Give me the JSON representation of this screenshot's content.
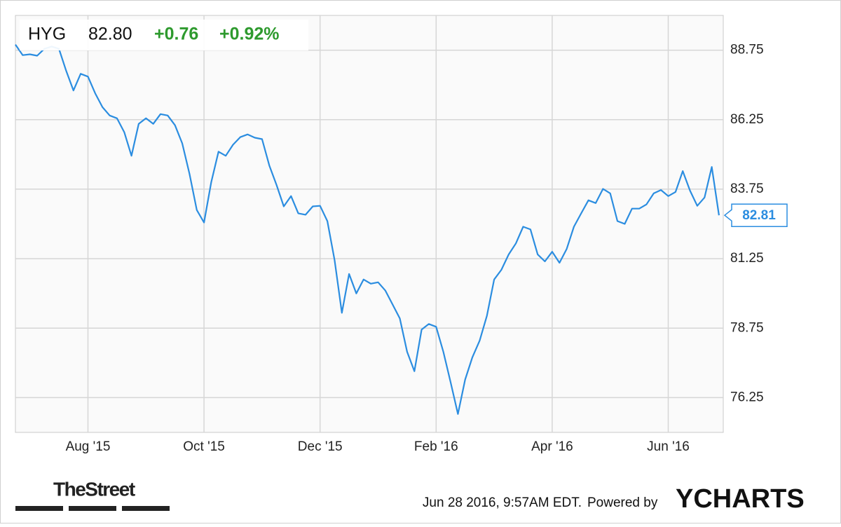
{
  "chart_data": {
    "type": "line",
    "header": {
      "price": "82.80",
      "change": "+0.76",
      "change_percent": "+0.92%"
    },
    "series": [
      {
        "name": "HYG",
        "color": "#2b8de0",
        "values": [
          88.95,
          88.57,
          88.6,
          88.55,
          88.8,
          88.88,
          88.8,
          88.0,
          87.3,
          87.9,
          87.8,
          87.2,
          86.7,
          86.4,
          86.3,
          85.8,
          84.95,
          86.1,
          86.3,
          86.1,
          86.45,
          86.4,
          86.05,
          85.4,
          84.3,
          83.0,
          82.55,
          84.0,
          85.1,
          84.95,
          85.35,
          85.62,
          85.72,
          85.6,
          85.55,
          84.6,
          83.9,
          83.13,
          83.5,
          82.88,
          82.83,
          83.13,
          83.15,
          82.6,
          81.2,
          79.3,
          80.7,
          80.0,
          80.5,
          80.35,
          80.4,
          80.1,
          79.6,
          79.1,
          77.9,
          77.2,
          78.7,
          78.9,
          78.8,
          77.9,
          76.8,
          75.66,
          76.9,
          77.7,
          78.3,
          79.2,
          80.5,
          80.85,
          81.4,
          81.8,
          82.4,
          82.3,
          81.4,
          81.15,
          81.5,
          81.1,
          81.6,
          82.4,
          82.88,
          83.35,
          83.25,
          83.76,
          83.6,
          82.6,
          82.5,
          83.05,
          83.05,
          83.2,
          83.6,
          83.72,
          83.5,
          83.65,
          84.4,
          83.7,
          83.15,
          83.45,
          84.55,
          82.81
        ]
      }
    ],
    "categories": [
      null,
      null,
      null,
      null,
      null,
      null,
      null,
      null,
      null,
      null,
      "Aug '15",
      null,
      null,
      null,
      null,
      null,
      null,
      null,
      null,
      null,
      null,
      null,
      null,
      null,
      null,
      null,
      "Oct '15",
      null,
      null,
      null,
      null,
      null,
      null,
      null,
      null,
      null,
      null,
      null,
      null,
      null,
      null,
      null,
      "Dec '15",
      null,
      null,
      null,
      null,
      null,
      null,
      null,
      null,
      null,
      null,
      null,
      null,
      null,
      null,
      null,
      "Feb '16",
      null,
      null,
      null,
      null,
      null,
      null,
      null,
      null,
      null,
      null,
      null,
      null,
      null,
      null,
      null,
      "Apr '16",
      null,
      null,
      null,
      null,
      null,
      null,
      null,
      null,
      null,
      null,
      null,
      null,
      null,
      null,
      null,
      "Jun '16",
      null,
      null,
      null,
      null,
      null,
      null,
      null
    ],
    "ylim": [
      75,
      90
    ],
    "yticks": [
      76.25,
      78.75,
      81.25,
      83.75,
      86.25,
      88.75
    ],
    "grid": true,
    "footer": {
      "logo": "TheStreet",
      "timestamp": "Jun 28 2016, 9:57AM EDT.",
      "powered_by": "Powered by",
      "brand": "YCHARTS"
    }
  }
}
